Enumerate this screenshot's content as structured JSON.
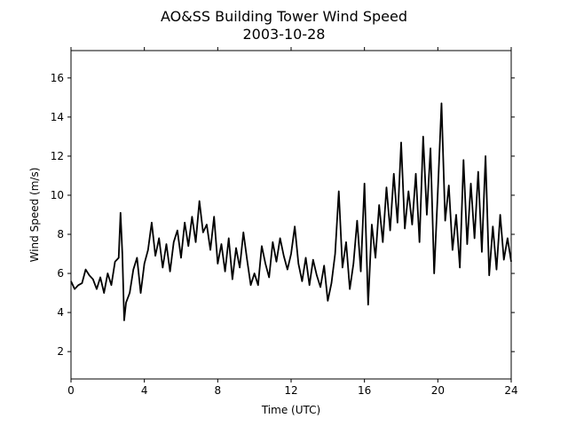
{
  "chart_data": {
    "type": "line",
    "title": "AO&SS Building Tower Wind Speed",
    "subtitle": "2003-10-28",
    "x_label": "Time (UTC)",
    "y_label": "Wind Speed (m/s)",
    "color": "#000000",
    "xlim": [
      0,
      24
    ],
    "xticks": [
      0,
      4,
      8,
      12,
      16,
      20,
      24
    ],
    "ylim": [
      0.6,
      17.4
    ],
    "yticks": [
      2,
      4,
      6,
      8,
      10,
      12,
      14,
      16
    ],
    "x": [
      0,
      0.2,
      0.4,
      0.6,
      0.8,
      1.0,
      1.2,
      1.4,
      1.6,
      1.8,
      2.0,
      2.2,
      2.4,
      2.6,
      2.7,
      2.8,
      2.9,
      3.0,
      3.2,
      3.4,
      3.6,
      3.8,
      4.0,
      4.2,
      4.4,
      4.6,
      4.8,
      5.0,
      5.2,
      5.4,
      5.6,
      5.8,
      6.0,
      6.2,
      6.4,
      6.6,
      6.8,
      7.0,
      7.2,
      7.4,
      7.6,
      7.8,
      8.0,
      8.2,
      8.4,
      8.6,
      8.8,
      9.0,
      9.2,
      9.4,
      9.6,
      9.8,
      10.0,
      10.2,
      10.4,
      10.6,
      10.8,
      11.0,
      11.2,
      11.4,
      11.6,
      11.8,
      12.0,
      12.2,
      12.4,
      12.6,
      12.8,
      13.0,
      13.2,
      13.4,
      13.6,
      13.8,
      14.0,
      14.2,
      14.4,
      14.6,
      14.8,
      15.0,
      15.2,
      15.4,
      15.6,
      15.8,
      16.0,
      16.2,
      16.4,
      16.6,
      16.8,
      17.0,
      17.2,
      17.4,
      17.6,
      17.8,
      18.0,
      18.2,
      18.4,
      18.6,
      18.8,
      19.0,
      19.2,
      19.4,
      19.6,
      19.8,
      20.0,
      20.2,
      20.4,
      20.6,
      20.8,
      21.0,
      21.2,
      21.4,
      21.6,
      21.8,
      22.0,
      22.2,
      22.4,
      22.6,
      22.8,
      23.0,
      23.2,
      23.4,
      23.6,
      23.8,
      24.0
    ],
    "values": [
      5.6,
      5.2,
      5.4,
      5.5,
      6.2,
      5.9,
      5.7,
      5.2,
      5.8,
      5.0,
      6.0,
      5.4,
      6.6,
      6.8,
      9.1,
      7.0,
      3.6,
      4.5,
      5.0,
      6.2,
      6.8,
      5.0,
      6.5,
      7.2,
      8.6,
      6.9,
      7.8,
      6.3,
      7.5,
      6.1,
      7.6,
      8.2,
      6.8,
      8.6,
      7.4,
      8.9,
      7.6,
      9.7,
      8.1,
      8.5,
      7.2,
      8.9,
      6.5,
      7.5,
      6.1,
      7.8,
      5.7,
      7.3,
      6.3,
      8.1,
      6.7,
      5.4,
      6.0,
      5.4,
      7.4,
      6.5,
      5.8,
      7.6,
      6.6,
      7.8,
      6.9,
      6.2,
      7.0,
      8.4,
      6.5,
      5.6,
      6.8,
      5.4,
      6.7,
      5.9,
      5.3,
      6.4,
      4.6,
      5.5,
      7.0,
      10.2,
      6.3,
      7.6,
      5.2,
      6.5,
      8.7,
      6.1,
      10.6,
      4.4,
      8.5,
      6.8,
      9.5,
      7.6,
      10.4,
      8.2,
      11.1,
      8.6,
      12.7,
      8.3,
      10.2,
      8.5,
      11.1,
      7.6,
      13.0,
      9.0,
      12.4,
      6.0,
      10.2,
      14.7,
      8.7,
      10.5,
      7.2,
      9.0,
      6.3,
      11.8,
      7.5,
      10.6,
      7.8,
      11.2,
      7.1,
      12.0,
      5.9,
      8.4,
      6.2,
      9.0,
      6.7,
      7.8,
      6.6
    ]
  }
}
